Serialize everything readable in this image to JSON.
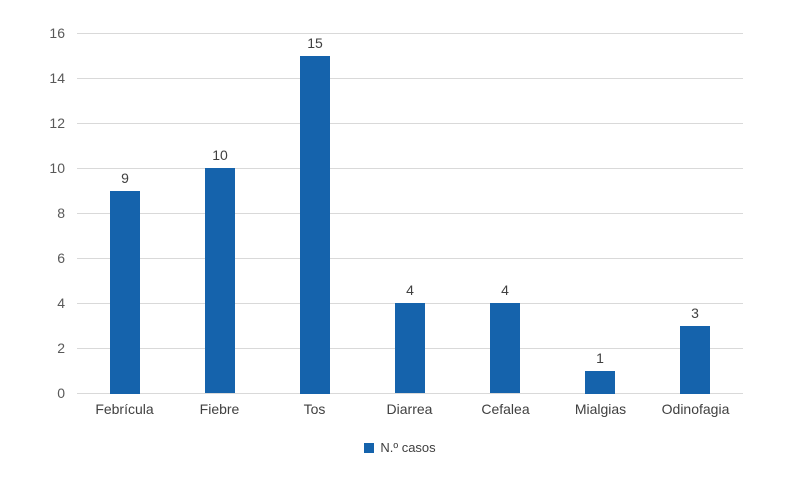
{
  "chart_data": {
    "type": "bar",
    "title": "",
    "xlabel": "",
    "ylabel": "",
    "categories": [
      "Febrícula",
      "Fiebre",
      "Tos",
      "Diarrea",
      "Cefalea",
      "Mialgias",
      "Odinofagia"
    ],
    "values": [
      9,
      10,
      15,
      4,
      4,
      1,
      3
    ],
    "series_name": "N.º casos",
    "ylim": [
      0,
      16
    ],
    "ytick_step": 2,
    "ytick_labels": [
      "0",
      "2",
      "4",
      "6",
      "8",
      "10",
      "12",
      "14",
      "16"
    ],
    "grid": "horizontal",
    "legend_position": "bottom-center",
    "colors": {
      "bar": "#1563AC",
      "gridline": "#D9D9D9",
      "axis_line": "#D9D9D9",
      "axis_label": "#595959",
      "value_label": "#404040",
      "legend_text": "#404040",
      "background": "#FFFFFF"
    }
  }
}
